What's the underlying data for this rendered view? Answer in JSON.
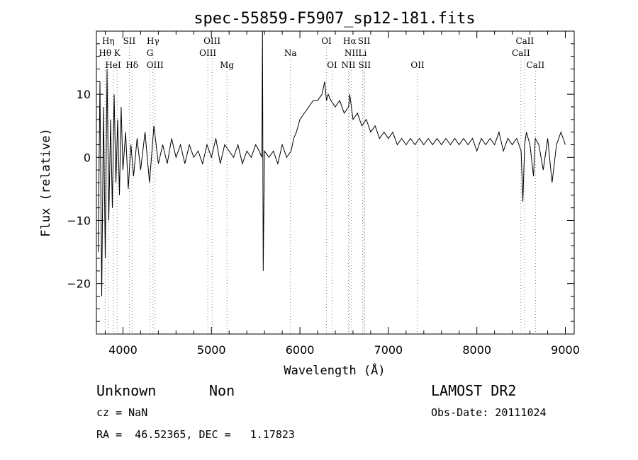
{
  "chart_data": {
    "type": "line",
    "title": "spec-55859-F5907_sp12-181.fits",
    "xlabel": "Wavelength (Å)",
    "ylabel": "Flux (relative)",
    "xlim": [
      3700,
      9100
    ],
    "ylim": [
      -28,
      20
    ],
    "xticks": [
      4000,
      5000,
      6000,
      7000,
      8000,
      9000
    ],
    "yticks": [
      -20,
      -10,
      0,
      10
    ],
    "grid": false,
    "series": [
      {
        "x": [
          3720,
          3740,
          3760,
          3780,
          3800,
          3820,
          3840,
          3860,
          3880,
          3900,
          3920,
          3940,
          3960,
          3980,
          4000,
          4030,
          4060,
          4090,
          4120,
          4160,
          4200,
          4250,
          4300,
          4350,
          4400,
          4450,
          4500,
          4550,
          4600,
          4650,
          4700,
          4750,
          4800,
          4850,
          4900,
          4950,
          5000,
          5050,
          5100,
          5150,
          5200,
          5250,
          5300,
          5350,
          5400,
          5450,
          5500,
          5540,
          5570,
          5577,
          5585,
          5600,
          5650,
          5700,
          5750,
          5800,
          5850,
          5900,
          5930,
          5960,
          6000,
          6050,
          6100,
          6150,
          6200,
          6250,
          6280,
          6300,
          6320,
          6350,
          6400,
          6450,
          6500,
          6550,
          6563,
          6600,
          6650,
          6700,
          6750,
          6800,
          6850,
          6900,
          6950,
          7000,
          7050,
          7100,
          7150,
          7200,
          7250,
          7300,
          7350,
          7400,
          7450,
          7500,
          7550,
          7600,
          7650,
          7700,
          7750,
          7800,
          7850,
          7900,
          7950,
          8000,
          8050,
          8100,
          8150,
          8200,
          8250,
          8300,
          8350,
          8400,
          8450,
          8500,
          8520,
          8540,
          8560,
          8600,
          8640,
          8660,
          8700,
          8750,
          8800,
          8850,
          8900,
          8950,
          9000
        ],
        "y": [
          -15,
          12,
          -22,
          8,
          -16,
          14,
          -10,
          6,
          -8,
          10,
          -4,
          6,
          -6,
          8,
          -2,
          4,
          -5,
          2,
          -3,
          3,
          -2,
          4,
          -4,
          5,
          -1,
          2,
          -1,
          3,
          0,
          2,
          -1,
          2,
          0,
          1,
          -1,
          2,
          0,
          3,
          -1,
          2,
          1,
          0,
          2,
          -1,
          1,
          0,
          2,
          1,
          0,
          20,
          -18,
          1,
          0,
          1,
          -1,
          2,
          0,
          1,
          3,
          4,
          6,
          7,
          8,
          9,
          9,
          10,
          12,
          9,
          10,
          9,
          8,
          9,
          7,
          8,
          10,
          6,
          7,
          5,
          6,
          4,
          5,
          3,
          4,
          3,
          4,
          2,
          3,
          2,
          3,
          2,
          3,
          2,
          3,
          2,
          3,
          2,
          3,
          2,
          3,
          2,
          3,
          2,
          3,
          1,
          3,
          2,
          3,
          2,
          4,
          1,
          3,
          2,
          3,
          1,
          -7,
          2,
          4,
          2,
          -3,
          3,
          2,
          -2,
          3,
          -4,
          2,
          4,
          2
        ]
      }
    ],
    "annotations": [
      {
        "label": "Hη",
        "x": 3835,
        "row": 1
      },
      {
        "label": "Hθ",
        "x": 3798,
        "row": 2
      },
      {
        "label": "K",
        "x": 3934,
        "row": 2
      },
      {
        "label": "HeI",
        "x": 3889,
        "row": 3
      },
      {
        "label": "SII",
        "x": 4072,
        "row": 1
      },
      {
        "label": "Hδ",
        "x": 4102,
        "row": 3
      },
      {
        "label": "Hγ",
        "x": 4340,
        "row": 1
      },
      {
        "label": "G",
        "x": 4305,
        "row": 2
      },
      {
        "label": "OIII",
        "x": 4363,
        "row": 3
      },
      {
        "label": "OIII",
        "x": 5007,
        "row": 1
      },
      {
        "label": "OIII",
        "x": 4959,
        "row": 2
      },
      {
        "label": "Mg",
        "x": 5175,
        "row": 3
      },
      {
        "label": "Na",
        "x": 5893,
        "row": 2
      },
      {
        "label": "OI",
        "x": 6300,
        "row": 1
      },
      {
        "label": "OI",
        "x": 6364,
        "row": 3
      },
      {
        "label": "Hα",
        "x": 6563,
        "row": 1
      },
      {
        "label": "SII",
        "x": 6725,
        "row": 1
      },
      {
        "label": "NII",
        "x": 6583,
        "row": 2
      },
      {
        "label": "Li",
        "x": 6708,
        "row": 2
      },
      {
        "label": "NII",
        "x": 6548,
        "row": 3
      },
      {
        "label": "SII",
        "x": 6731,
        "row": 3
      },
      {
        "label": "OII",
        "x": 7330,
        "row": 3
      },
      {
        "label": "CaII",
        "x": 8542,
        "row": 1
      },
      {
        "label": "CaII",
        "x": 8498,
        "row": 2
      },
      {
        "label": "CaII",
        "x": 8662,
        "row": 3
      }
    ]
  },
  "footer": {
    "class": "Unknown",
    "subclass": "Non",
    "survey": "LAMOST DR2",
    "cz": "cz = NaN",
    "obs_date": "Obs-Date: 20111024",
    "coords": "RA =  46.52365, DEC =   1.17823"
  }
}
